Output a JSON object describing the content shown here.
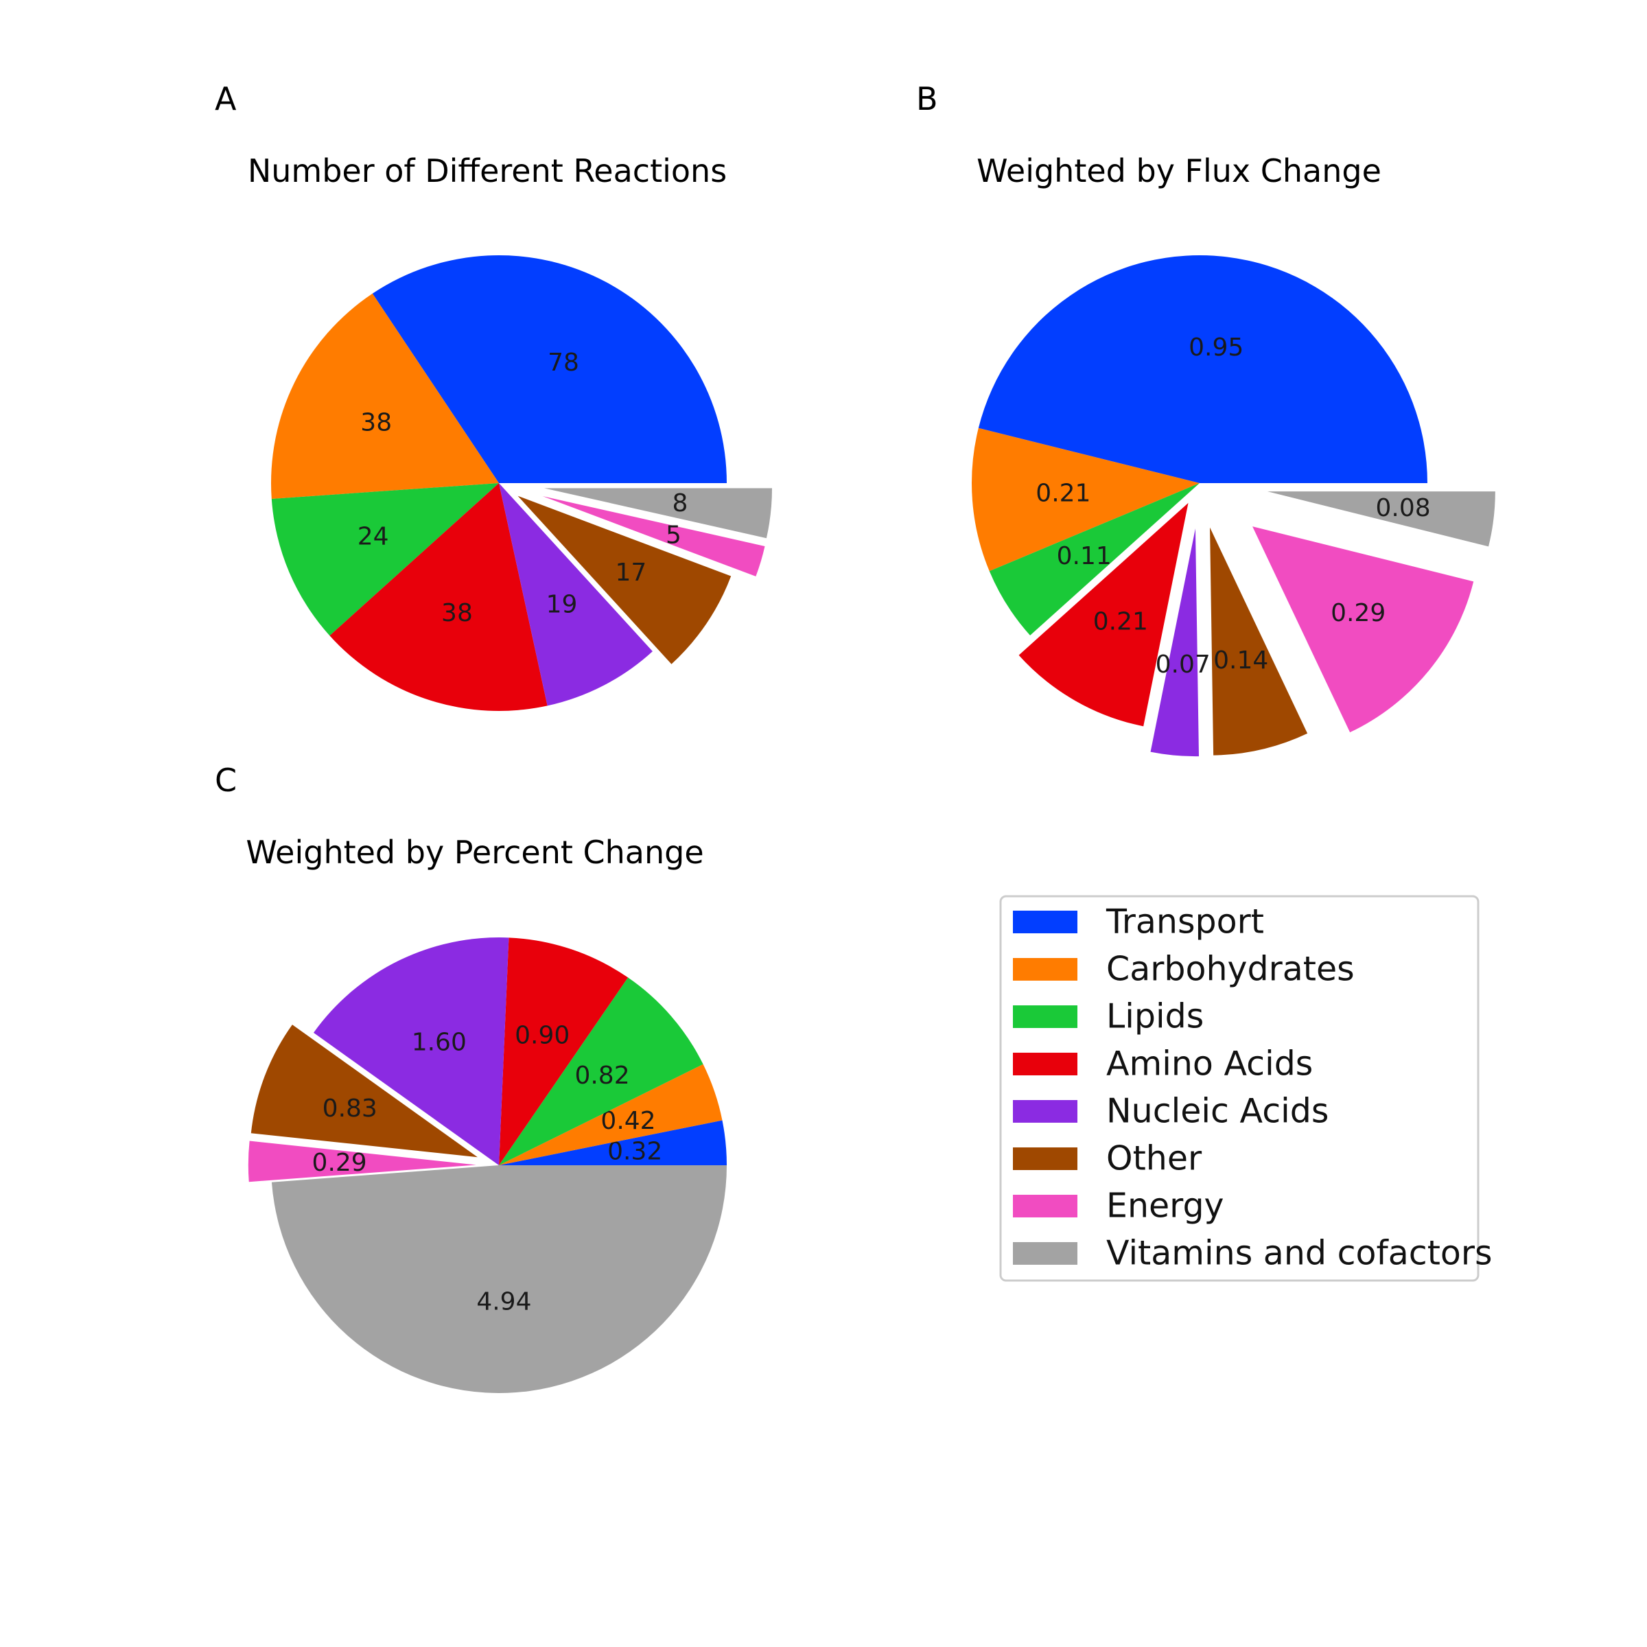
{
  "colors": {
    "Transport": "#023eff",
    "Carbohydrates": "#ff7c00",
    "Lipids": "#1ac938",
    "Amino Acids": "#e8000b",
    "Nucleic Acids": "#8b2be2",
    "Other": "#9f4800",
    "Energy": "#f14cc1",
    "Vitamins and cofactors": "#a3a3a3"
  },
  "legend": {
    "items": [
      "Transport",
      "Carbohydrates",
      "Lipids",
      "Amino Acids",
      "Nucleic Acids",
      "Other",
      "Energy",
      "Vitamins and cofactors"
    ]
  },
  "chart_data": [
    {
      "type": "pie",
      "panel": "A",
      "title": "Number of Different Reactions",
      "start_angle_deg": 0,
      "direction": "counterclockwise",
      "slices": [
        {
          "label": "Transport",
          "value": 78,
          "display": "78",
          "explode": 0
        },
        {
          "label": "Carbohydrates",
          "value": 38,
          "display": "38",
          "explode": 0
        },
        {
          "label": "Lipids",
          "value": 24,
          "display": "24",
          "explode": 0
        },
        {
          "label": "Amino Acids",
          "value": 38,
          "display": "38",
          "explode": 0
        },
        {
          "label": "Nucleic Acids",
          "value": 19,
          "display": "19",
          "explode": 0
        },
        {
          "label": "Other",
          "value": 17,
          "display": "17",
          "explode": 0.1
        },
        {
          "label": "Energy",
          "value": 5,
          "display": "5",
          "explode": 0.2
        },
        {
          "label": "Vitamins and cofactors",
          "value": 8,
          "display": "8",
          "explode": 0.2
        }
      ]
    },
    {
      "type": "pie",
      "panel": "B",
      "title": "Weighted by Flux Change",
      "start_angle_deg": 0,
      "direction": "counterclockwise",
      "slices": [
        {
          "label": "Transport",
          "value": 0.95,
          "display": "0.95",
          "explode": 0
        },
        {
          "label": "Carbohydrates",
          "value": 0.21,
          "display": "0.21",
          "explode": 0
        },
        {
          "label": "Lipids",
          "value": 0.11,
          "display": "0.11",
          "explode": 0
        },
        {
          "label": "Amino Acids",
          "value": 0.21,
          "display": "0.21",
          "explode": 0.1
        },
        {
          "label": "Nucleic Acids",
          "value": 0.07,
          "display": "0.07",
          "explode": 0.2
        },
        {
          "label": "Other",
          "value": 0.14,
          "display": "0.14",
          "explode": 0.2
        },
        {
          "label": "Energy",
          "value": 0.29,
          "display": "0.29",
          "explode": 0.3
        },
        {
          "label": "Vitamins and cofactors",
          "value": 0.08,
          "display": "0.08",
          "explode": 0.3
        }
      ]
    },
    {
      "type": "pie",
      "panel": "C",
      "title": "Weighted by Percent Change",
      "start_angle_deg": 0,
      "direction": "counterclockwise",
      "slices": [
        {
          "label": "Transport",
          "value": 0.32,
          "display": "0.32",
          "explode": 0
        },
        {
          "label": "Carbohydrates",
          "value": 0.42,
          "display": "0.42",
          "explode": 0
        },
        {
          "label": "Lipids",
          "value": 0.82,
          "display": "0.82",
          "explode": 0
        },
        {
          "label": "Amino Acids",
          "value": 0.9,
          "display": "0.90",
          "explode": 0
        },
        {
          "label": "Nucleic Acids",
          "value": 1.6,
          "display": "1.60",
          "explode": 0
        },
        {
          "label": "Other",
          "value": 0.83,
          "display": "0.83",
          "explode": 0.1
        },
        {
          "label": "Energy",
          "value": 0.29,
          "display": "0.29",
          "explode": 0.1
        },
        {
          "label": "Vitamins and cofactors",
          "value": 4.94,
          "display": "4.94",
          "explode": 0
        }
      ]
    }
  ]
}
